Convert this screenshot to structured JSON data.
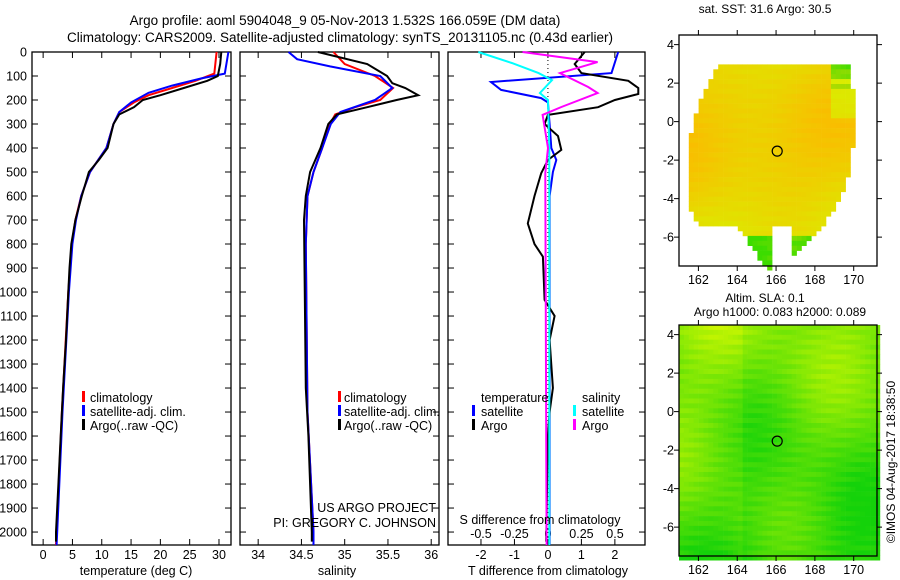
{
  "header": {
    "title_line1": "Argo profile: aoml 5904048_9 05-Nov-2013 1.532S 166.059E (DM data)",
    "title_line2": "Climatology: CARS2009. Satellite-adjusted climatology: synTS_20131105.nc (0.43d earlier)"
  },
  "credits": {
    "project": "US ARGO PROJECT",
    "pi": "PI: GREGORY C. JOHNSON",
    "stamp": "©IMOS 04-Aug-2017 18:38:50"
  },
  "colors": {
    "climatology": "#ff0000",
    "satellite": "#0000ff",
    "argo": "#000000",
    "salinity_satellite": "#00ffff",
    "salinity_argo": "#ff00ff"
  },
  "chart_data": [
    {
      "type": "line",
      "title": "",
      "xlabel": "temperature (deg C)",
      "ylabel": "",
      "xlim": [
        -1.9,
        32.05
      ],
      "ylim": [
        2054,
        0
      ],
      "xticks": [
        "0",
        "5",
        "10",
        "15",
        "20",
        "25",
        "30"
      ],
      "yticks": [
        "0",
        "100",
        "200",
        "300",
        "400",
        "500",
        "600",
        "700",
        "800",
        "900",
        "1000",
        "1100",
        "1200",
        "1300",
        "1400",
        "1500",
        "1600",
        "1700",
        "1800",
        "1900",
        "2000"
      ],
      "legend": {
        "placement": "center-left",
        "entries": [
          "climatology",
          "satellite-adj. clim.",
          "Argo(..raw -QC)"
        ]
      },
      "series": [
        {
          "name": "climatology",
          "color": "#ff0000",
          "depth": [
            0,
            90,
            120,
            150,
            180,
            210,
            250,
            300,
            400,
            500,
            600,
            700,
            800,
            1000,
            1500,
            2000,
            2054
          ],
          "values": [
            29.6,
            29.2,
            26,
            22,
            18,
            15.5,
            13,
            12,
            10.8,
            8,
            6.5,
            5.5,
            4.9,
            4.3,
            3.2,
            2.3,
            2.2
          ]
        },
        {
          "name": "satellite-adj. clim.",
          "color": "#0000ff",
          "depth": [
            0,
            90,
            110,
            140,
            170,
            210,
            250,
            300,
            400,
            500,
            600,
            700,
            800,
            1000,
            1500,
            2000,
            2054
          ],
          "values": [
            31.6,
            31,
            27,
            22,
            18,
            15,
            13,
            12,
            10.8,
            8,
            6.5,
            5.6,
            5,
            4.4,
            3.3,
            2.4,
            2.3
          ]
        },
        {
          "name": "Argo(..raw -QC)",
          "color": "#000000",
          "depth": [
            0,
            50,
            100,
            120,
            150,
            180,
            200,
            230,
            260,
            300,
            400,
            450,
            500,
            600,
            700,
            800,
            900,
            1000,
            1200,
            1400,
            1600,
            1800,
            2000,
            2040
          ],
          "values": [
            30.4,
            30.2,
            29.8,
            28,
            24,
            20,
            17,
            15.5,
            13,
            12,
            11,
            9.5,
            7.8,
            6.6,
            5.5,
            4.8,
            4.5,
            4.3,
            3.9,
            3.4,
            3.0,
            2.6,
            2.2,
            2.2
          ]
        }
      ]
    },
    {
      "type": "line",
      "title": "",
      "xlabel": "salinity",
      "ylabel": "",
      "xlim": [
        33.79,
        36.09
      ],
      "ylim": [
        2054,
        0
      ],
      "xticks": [
        "34",
        "34.5",
        "35",
        "35.5",
        "36"
      ],
      "legend": {
        "placement": "center-right",
        "entries": [
          "climatology",
          "satellite-adj. clim.",
          "Argo(..raw -QC)"
        ]
      },
      "series": [
        {
          "name": "climatology",
          "color": "#ff0000",
          "depth": [
            0,
            50,
            100,
            150,
            200,
            230,
            260,
            300,
            400,
            500,
            600,
            800,
            1500,
            2000,
            2054
          ],
          "values": [
            34.87,
            35.0,
            35.35,
            35.56,
            35.41,
            35.12,
            34.89,
            34.83,
            34.74,
            34.64,
            34.57,
            34.55,
            34.57,
            34.64,
            34.64
          ]
        },
        {
          "name": "satellite-adj. clim.",
          "color": "#0000ff",
          "depth": [
            0,
            30,
            60,
            100,
            150,
            200,
            250,
            300,
            400,
            500,
            600,
            800,
            1500,
            2000,
            2054
          ],
          "values": [
            34.35,
            34.45,
            34.83,
            35.41,
            35.55,
            35.35,
            34.95,
            34.84,
            34.74,
            34.64,
            34.57,
            34.55,
            34.57,
            34.64,
            34.64
          ]
        },
        {
          "name": "Argo(..raw -QC)",
          "color": "#000000",
          "depth": [
            0,
            50,
            100,
            130,
            150,
            180,
            200,
            230,
            260,
            300,
            400,
            500,
            600,
            700,
            1400,
            1600,
            2000,
            2040
          ],
          "values": [
            34.69,
            35.26,
            35.49,
            35.55,
            35.7,
            35.85,
            35.6,
            35.26,
            34.91,
            34.81,
            34.72,
            34.6,
            34.55,
            34.53,
            34.55,
            34.58,
            34.62,
            34.62
          ]
        }
      ]
    },
    {
      "type": "line",
      "title": "",
      "xlabel": "T difference from climatology",
      "xlabel2": "S difference from climatology",
      "ylabel": "",
      "xlim": [
        -2.985,
        2.9
      ],
      "xlim_s": [
        -0.746,
        0.724
      ],
      "ylim": [
        2054,
        0
      ],
      "xticks": [
        "-2",
        "-1",
        "0",
        "1",
        "2"
      ],
      "xticks_s": [
        "-0.5",
        "-0.25",
        "0",
        "0.25",
        "0.5"
      ],
      "legend": {
        "placement": "center",
        "temperature_heading": "temperature",
        "salinity_heading": "salinity",
        "entries": [
          "satellite",
          "Argo",
          "satellite",
          "Argo"
        ]
      },
      "series": [
        {
          "name": "temperature satellite",
          "axis": "T",
          "color": "#0000ff",
          "depth": [
            0,
            88,
            125,
            158,
            192,
            210,
            300,
            400,
            450,
            500,
            600,
            1000,
            2054
          ],
          "values": [
            2.1,
            1.9,
            -1.7,
            -1.4,
            -0.2,
            0,
            0.05,
            0.1,
            0.25,
            0.15,
            0.05,
            0.05,
            0.05
          ]
        },
        {
          "name": "temperature Argo",
          "axis": "T",
          "color": "#000000",
          "depth": [
            0,
            50,
            88,
            120,
            150,
            175,
            200,
            230,
            262,
            300,
            350,
            408,
            450,
            505,
            600,
            714,
            800,
            853,
            1033,
            1100,
            1200,
            1400,
            1500,
            1600,
            2040
          ],
          "values": [
            1.1,
            0.8,
            1.0,
            2.4,
            2.7,
            2.7,
            2.0,
            1.5,
            0,
            -0.1,
            0.3,
            0.4,
            0,
            -0.2,
            -0.4,
            -0.6,
            -0.4,
            -0.15,
            -0.1,
            0.2,
            0.05,
            0.15,
            0.05,
            0,
            -0.05
          ]
        },
        {
          "name": "salinity satellite",
          "axis": "S",
          "color": "#00ffff",
          "depth": [
            0,
            46,
            88,
            117,
            171,
            200,
            400,
            2054
          ],
          "values": [
            -0.52,
            -0.27,
            -0.07,
            0.03,
            -0.06,
            0,
            0.01,
            0.01
          ]
        },
        {
          "name": "salinity Argo",
          "axis": "S",
          "color": "#ff00ff",
          "depth": [
            0,
            42,
            88,
            146,
            171,
            229,
            262,
            400,
            505,
            2054
          ],
          "values": [
            -0.19,
            0.37,
            0.09,
            0.3,
            0.37,
            0.1,
            -0.04,
            0,
            -0.02,
            -0.01
          ]
        }
      ]
    },
    {
      "type": "heatmap",
      "title": "sat. SST: 31.6 Argo: 30.5",
      "xlim": [
        161,
        171.2
      ],
      "ylim": [
        -7.5,
        4.5
      ],
      "xticks": [
        "162",
        "164",
        "166",
        "168",
        "170"
      ],
      "yticks": [
        "4",
        "2",
        "0",
        "-2",
        "-4",
        "-6"
      ],
      "marker": {
        "lon": 166.059,
        "lat": -1.532
      }
    },
    {
      "type": "heatmap",
      "title": "Altim. SLA: 0.1",
      "subtitle": "Argo h1000: 0.083 h2000: 0.089",
      "xlim": [
        161,
        171.2
      ],
      "ylim": [
        -7.5,
        4.5
      ],
      "xticks": [
        "162",
        "164",
        "166",
        "168",
        "170"
      ],
      "yticks": [
        "4",
        "2",
        "0",
        "-2",
        "-4",
        "-6"
      ],
      "marker": {
        "lon": 166.059,
        "lat": -1.532
      }
    }
  ]
}
